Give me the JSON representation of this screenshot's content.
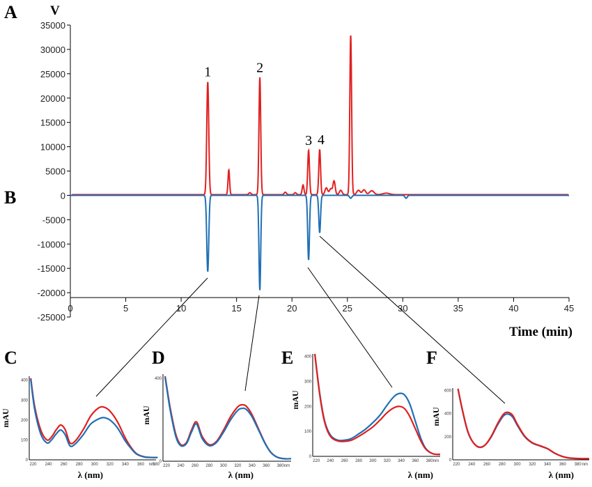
{
  "panel_labels": {
    "A": "A",
    "B": "B",
    "C": "C",
    "D": "D",
    "E": "E",
    "F": "F"
  },
  "chart_data": [
    {
      "type": "line",
      "panel": "A/B",
      "ylabel": "V",
      "xlabel": "Time (min)",
      "xlim": [
        0,
        45
      ],
      "ylim": [
        -25000,
        35000
      ],
      "xticks": [
        0,
        5,
        10,
        15,
        20,
        25,
        30,
        35,
        40,
        45
      ],
      "yticks": [
        35000,
        30000,
        25000,
        20000,
        15000,
        10000,
        5000,
        0,
        -5000,
        -10000,
        -15000,
        -20000,
        -25000
      ],
      "peak_labels": [
        {
          "text": "1",
          "x": 12.4,
          "y": 23300
        },
        {
          "text": "2",
          "x": 17.1,
          "y": 24200
        },
        {
          "text": "3",
          "x": 21.5,
          "y": 9200
        },
        {
          "text": "4",
          "x": 22.5,
          "y": 9400
        }
      ],
      "series": [
        {
          "color": "#e0201f",
          "baseline": 150,
          "peaks": [
            {
              "x": 12.4,
              "h": 23200,
              "w": 0.09
            },
            {
              "x": 14.3,
              "h": 5100,
              "w": 0.07
            },
            {
              "x": 16.2,
              "h": 400,
              "w": 0.1
            },
            {
              "x": 17.1,
              "h": 24100,
              "w": 0.08
            },
            {
              "x": 19.4,
              "h": 500,
              "w": 0.1
            },
            {
              "x": 20.3,
              "h": 400,
              "w": 0.1
            },
            {
              "x": 21.0,
              "h": 2000,
              "w": 0.08
            },
            {
              "x": 21.5,
              "h": 9100,
              "w": 0.08
            },
            {
              "x": 22.5,
              "h": 9300,
              "w": 0.08
            },
            {
              "x": 23.1,
              "h": 1400,
              "w": 0.12
            },
            {
              "x": 23.5,
              "h": 1200,
              "w": 0.12
            },
            {
              "x": 23.8,
              "h": 2800,
              "w": 0.1
            },
            {
              "x": 24.4,
              "h": 900,
              "w": 0.12
            },
            {
              "x": 25.3,
              "h": 32800,
              "w": 0.08
            },
            {
              "x": 26.0,
              "h": 900,
              "w": 0.15
            },
            {
              "x": 26.5,
              "h": 1000,
              "w": 0.15
            },
            {
              "x": 27.2,
              "h": 800,
              "w": 0.2
            },
            {
              "x": 28.5,
              "h": 300,
              "w": 0.3
            }
          ]
        },
        {
          "color": "#1f6fb5",
          "baseline": 0,
          "peaks": [
            {
              "x": 12.4,
              "h": -15700,
              "w": 0.09
            },
            {
              "x": 17.1,
              "h": -19500,
              "w": 0.08
            },
            {
              "x": 21.5,
              "h": -13300,
              "w": 0.08
            },
            {
              "x": 22.5,
              "h": -7700,
              "w": 0.08
            },
            {
              "x": 25.3,
              "h": -600,
              "w": 0.1
            },
            {
              "x": 30.3,
              "h": -600,
              "w": 0.1
            }
          ]
        }
      ]
    },
    {
      "type": "line",
      "panel": "C",
      "ylabel": "mAU",
      "xlabel": "λ (nm)",
      "xlim": [
        215,
        380
      ],
      "ylim": [
        0,
        420
      ],
      "xticks": [
        220,
        240,
        260,
        280,
        300,
        320,
        340,
        360,
        380
      ],
      "yticks": [
        0,
        100,
        200,
        300,
        400
      ],
      "xunit": "nm",
      "series": [
        {
          "color": "#e0201f",
          "x": [
            217,
            222,
            230,
            238,
            244,
            250,
            256,
            262,
            268,
            275,
            285,
            295,
            305,
            312,
            320,
            330,
            340,
            348,
            355,
            365,
            375,
            382
          ],
          "y": [
            410,
            270,
            150,
            100,
            115,
            150,
            175,
            150,
            85,
            95,
            150,
            220,
            260,
            265,
            245,
            190,
            110,
            60,
            30,
            15,
            12,
            12
          ]
        },
        {
          "color": "#1f6fb5",
          "x": [
            217,
            222,
            230,
            238,
            244,
            250,
            256,
            262,
            268,
            275,
            285,
            295,
            305,
            312,
            320,
            330,
            340,
            348,
            355,
            365,
            375,
            382
          ],
          "y": [
            405,
            255,
            130,
            85,
            100,
            130,
            150,
            125,
            70,
            80,
            125,
            180,
            205,
            212,
            200,
            160,
            95,
            55,
            28,
            14,
            12,
            12
          ]
        }
      ]
    },
    {
      "type": "line",
      "panel": "D",
      "ylabel": "mAU",
      "xlabel": "λ (nm)",
      "xlim": [
        215,
        395
      ],
      "ylim": [
        0,
        420
      ],
      "xticks": [
        220,
        240,
        260,
        280,
        300,
        320,
        340,
        360,
        380
      ],
      "yticks": [
        0,
        400
      ],
      "xunit": "nm",
      "series": [
        {
          "color": "#e0201f",
          "x": [
            218,
            225,
            233,
            240,
            248,
            255,
            262,
            270,
            280,
            290,
            300,
            310,
            320,
            326,
            332,
            340,
            350,
            358,
            366,
            375,
            385,
            395
          ],
          "y": [
            410,
            260,
            130,
            80,
            90,
            150,
            190,
            120,
            80,
            95,
            150,
            215,
            262,
            272,
            265,
            225,
            150,
            90,
            45,
            20,
            12,
            12
          ]
        },
        {
          "color": "#1f6fb5",
          "x": [
            218,
            225,
            233,
            240,
            248,
            255,
            262,
            270,
            280,
            290,
            300,
            310,
            320,
            326,
            332,
            340,
            350,
            358,
            366,
            375,
            385,
            395
          ],
          "y": [
            405,
            250,
            120,
            75,
            85,
            140,
            180,
            110,
            75,
            90,
            140,
            200,
            245,
            255,
            250,
            215,
            145,
            88,
            44,
            20,
            12,
            12
          ]
        }
      ]
    },
    {
      "type": "line",
      "panel": "E",
      "ylabel": "mAU",
      "xlabel": "λ (nm)",
      "xlim": [
        215,
        395
      ],
      "ylim": [
        0,
        410
      ],
      "xticks": [
        220,
        240,
        260,
        280,
        300,
        320,
        340,
        360,
        380
      ],
      "yticks": [
        0,
        100,
        200,
        300,
        400
      ],
      "xunit": "nm",
      "series": [
        {
          "color": "#1f6fb5",
          "x": [
            218,
            225,
            232,
            240,
            250,
            260,
            270,
            280,
            290,
            300,
            310,
            320,
            330,
            338,
            345,
            352,
            360,
            368,
            375,
            385,
            395
          ],
          "y": [
            410,
            250,
            140,
            85,
            65,
            65,
            72,
            90,
            110,
            135,
            165,
            205,
            240,
            252,
            245,
            210,
            140,
            70,
            30,
            10,
            8
          ]
        },
        {
          "color": "#e0201f",
          "x": [
            218,
            225,
            232,
            240,
            250,
            260,
            270,
            280,
            290,
            300,
            310,
            320,
            330,
            338,
            345,
            352,
            360,
            368,
            375,
            385,
            395
          ],
          "y": [
            410,
            245,
            135,
            80,
            62,
            60,
            65,
            80,
            98,
            118,
            145,
            175,
            195,
            200,
            190,
            160,
            110,
            60,
            28,
            10,
            8
          ]
        }
      ]
    },
    {
      "type": "line",
      "panel": "F",
      "ylabel": "mAU",
      "xlabel": "λ (nm)",
      "xlim": [
        215,
        395
      ],
      "ylim": [
        0,
        620
      ],
      "xticks": [
        220,
        240,
        260,
        280,
        300,
        320,
        340,
        360,
        380
      ],
      "yticks": [
        0,
        200,
        400,
        600
      ],
      "xunit": "nm",
      "series": [
        {
          "color": "#1f6fb5",
          "x": [
            222,
            228,
            235,
            242,
            250,
            258,
            266,
            274,
            282,
            288,
            294,
            300,
            310,
            320,
            330,
            340,
            350,
            360,
            370,
            385,
            395
          ],
          "y": [
            610,
            420,
            240,
            150,
            110,
            130,
            200,
            300,
            380,
            395,
            370,
            300,
            200,
            145,
            120,
            95,
            55,
            28,
            15,
            10,
            10
          ]
        },
        {
          "color": "#e0201f",
          "x": [
            222,
            228,
            235,
            242,
            250,
            258,
            266,
            274,
            282,
            288,
            294,
            300,
            310,
            320,
            330,
            340,
            350,
            360,
            370,
            385,
            395
          ],
          "y": [
            615,
            425,
            245,
            150,
            108,
            130,
            205,
            310,
            395,
            410,
            385,
            310,
            205,
            148,
            122,
            97,
            56,
            28,
            15,
            10,
            10
          ]
        }
      ]
    }
  ]
}
